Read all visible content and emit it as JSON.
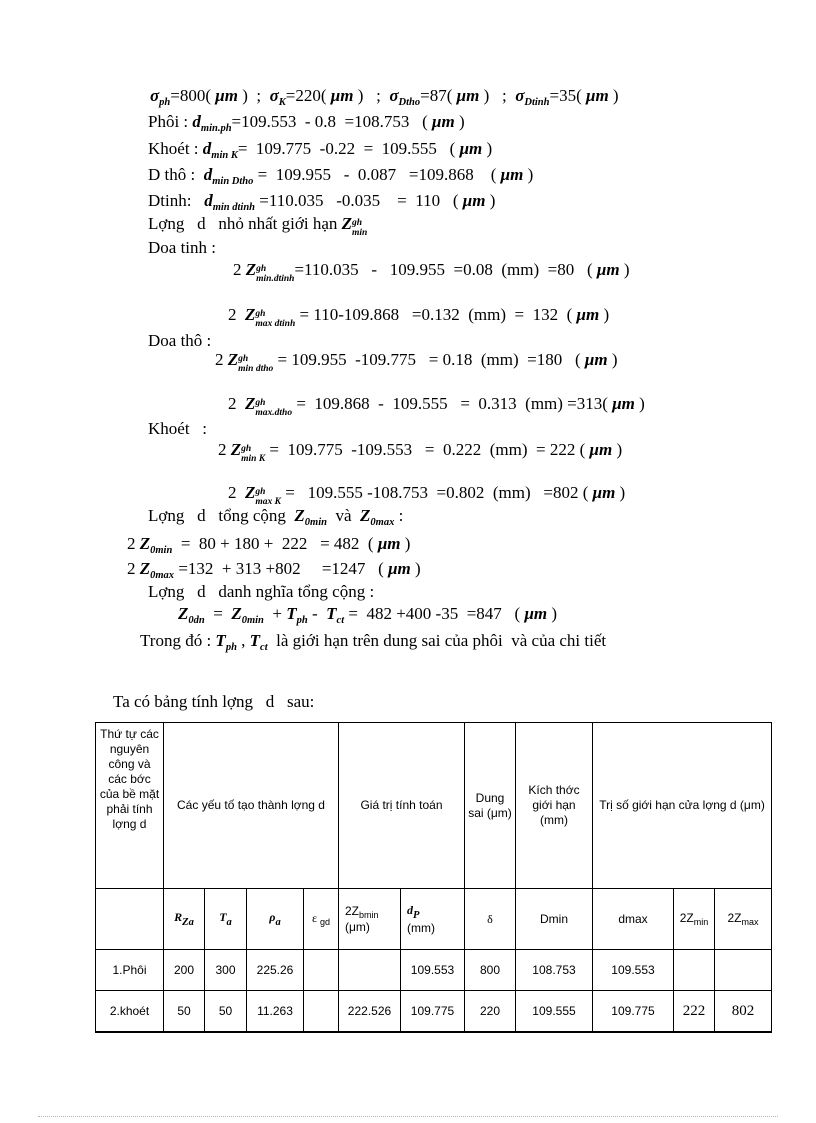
{
  "colors": {
    "ink": "#000000",
    "paper": "#ffffff"
  },
  "table_intro": "Ta có bảng tính lợng   d   sau:",
  "lines": [
    {
      "segs": [
        {
          "t": "σ",
          "c": "v"
        },
        {
          "t": "ph",
          "c": "s"
        },
        {
          "t": "=800( ",
          "c": "n"
        },
        {
          "t": "μm",
          "c": "u"
        },
        {
          "t": " )  ;  ",
          "c": "n"
        },
        {
          "t": "σ",
          "c": "v"
        },
        {
          "t": "K",
          "c": "s"
        },
        {
          "t": "=220( ",
          "c": "n"
        },
        {
          "t": "μm",
          "c": "u"
        },
        {
          "t": " )   ;  ",
          "c": "n"
        },
        {
          "t": "σ",
          "c": "v"
        },
        {
          "t": "Dtho",
          "c": "s"
        },
        {
          "t": "=87( ",
          "c": "n"
        },
        {
          "t": "μm",
          "c": "u"
        },
        {
          "t": " )   ;  ",
          "c": "n"
        },
        {
          "t": "σ",
          "c": "v"
        },
        {
          "t": "Dtinh",
          "c": "s"
        },
        {
          "t": "=35( ",
          "c": "n"
        },
        {
          "t": "μm",
          "c": "u"
        },
        {
          "t": " )",
          "c": "n"
        }
      ]
    },
    {
      "segs": [
        {
          "t": "Phôi : ",
          "c": "n"
        },
        {
          "t": "d",
          "c": "v"
        },
        {
          "t": "min.ph",
          "c": "s"
        },
        {
          "t": "=109.553  - 0.8  =108.753   ( ",
          "c": "n"
        },
        {
          "t": "μm",
          "c": "u"
        },
        {
          "t": " )",
          "c": "n"
        }
      ]
    },
    {
      "segs": [
        {
          "t": "Khoét : ",
          "c": "n"
        },
        {
          "t": "d",
          "c": "v"
        },
        {
          "t": "min K",
          "c": "s"
        },
        {
          "t": "=  109.775  -0.22  =  109.555   ( ",
          "c": "n"
        },
        {
          "t": "μm",
          "c": "u"
        },
        {
          "t": " )",
          "c": "n"
        }
      ]
    },
    {
      "segs": [
        {
          "t": "D thô :  ",
          "c": "n"
        },
        {
          "t": "d",
          "c": "v"
        },
        {
          "t": "min Dtho",
          "c": "s"
        },
        {
          "t": " =  109.955   -  0.087   =109.868    ( ",
          "c": "n"
        },
        {
          "t": "μm",
          "c": "u"
        },
        {
          "t": " )",
          "c": "n"
        }
      ]
    },
    {
      "segs": [
        {
          "t": "Dtinh:   ",
          "c": "n"
        },
        {
          "t": "d",
          "c": "v"
        },
        {
          "t": "min dtinh",
          "c": "s"
        },
        {
          "t": " =110.035   -0.035    =  110   ( ",
          "c": "n"
        },
        {
          "t": "μm",
          "c": "u"
        },
        {
          "t": " )",
          "c": "n"
        }
      ]
    },
    {
      "segs": [
        {
          "t": "Lợng   d   nhỏ nhất giới hạn ",
          "c": "n"
        },
        {
          "t": "Z",
          "c": "v",
          "sup": "gh",
          "sub": "min"
        }
      ]
    },
    {
      "segs": [
        {
          "t": "Doa tinh :",
          "c": "n"
        }
      ]
    },
    {
      "segs": [
        {
          "t": "2 ",
          "c": "n"
        },
        {
          "t": "Z",
          "c": "v",
          "sup": "gh",
          "sub": "min.dtinh"
        },
        {
          "t": "=110.035   -   109.955  =0.08  (mm)  =80   ( ",
          "c": "n"
        },
        {
          "t": "μm",
          "c": "u"
        },
        {
          "t": " )",
          "c": "n"
        }
      ]
    },
    {
      "segs": [
        {
          "t": "2  ",
          "c": "n"
        },
        {
          "t": "Z",
          "c": "v",
          "sup": "gh",
          "sub": "max dtinh"
        },
        {
          "t": " = 110-109.868   =0.132  (mm)  =  132  ( ",
          "c": "n"
        },
        {
          "t": "μm",
          "c": "u"
        },
        {
          "t": " )",
          "c": "n"
        }
      ]
    },
    {
      "segs": [
        {
          "t": "Doa thô :",
          "c": "n"
        }
      ]
    },
    {
      "segs": [
        {
          "t": "2 ",
          "c": "n"
        },
        {
          "t": "Z",
          "c": "v",
          "sup": "gh",
          "sub": "min dtho"
        },
        {
          "t": " = 109.955  -109.775   = 0.18  (mm)  =180   ( ",
          "c": "n"
        },
        {
          "t": "μm",
          "c": "u"
        },
        {
          "t": " )",
          "c": "n"
        }
      ]
    },
    {
      "segs": [
        {
          "t": "2  ",
          "c": "n"
        },
        {
          "t": "Z",
          "c": "v",
          "sup": "gh",
          "sub": "max.dtho"
        },
        {
          "t": " =  109.868  -  109.555   =  0.313  (mm) =313( ",
          "c": "n"
        },
        {
          "t": "μm",
          "c": "u"
        },
        {
          "t": " )",
          "c": "n"
        }
      ]
    },
    {
      "segs": [
        {
          "t": "Khoét   :",
          "c": "n"
        }
      ]
    },
    {
      "segs": [
        {
          "t": "2 ",
          "c": "n"
        },
        {
          "t": "Z",
          "c": "v",
          "sup": "gh",
          "sub": "min K"
        },
        {
          "t": " =  109.775  -109.553   =  0.222  (mm)  = 222 ( ",
          "c": "n"
        },
        {
          "t": "μm",
          "c": "u"
        },
        {
          "t": " )",
          "c": "n"
        }
      ]
    },
    {
      "segs": [
        {
          "t": "2  ",
          "c": "n"
        },
        {
          "t": "Z",
          "c": "v",
          "sup": "gh",
          "sub": "max K"
        },
        {
          "t": " =   109.555 -108.753  =0.802  (mm)   =802 ( ",
          "c": "n"
        },
        {
          "t": "μm",
          "c": "u"
        },
        {
          "t": " )",
          "c": "n"
        }
      ]
    },
    {
      "segs": [
        {
          "t": "Lợng   d   tổng cộng  ",
          "c": "n"
        },
        {
          "t": "Z",
          "c": "v"
        },
        {
          "t": "0min",
          "c": "s"
        },
        {
          "t": "  và  ",
          "c": "n"
        },
        {
          "t": "Z",
          "c": "v"
        },
        {
          "t": "0max",
          "c": "s"
        },
        {
          "t": " :",
          "c": "n"
        }
      ]
    },
    {
      "segs": [
        {
          "t": "2 ",
          "c": "n"
        },
        {
          "t": "Z",
          "c": "v"
        },
        {
          "t": "0min",
          "c": "s"
        },
        {
          "t": "  =  80 + 180 +  222   = 482  ( ",
          "c": "n"
        },
        {
          "t": "μm",
          "c": "u"
        },
        {
          "t": " )",
          "c": "n"
        }
      ]
    },
    {
      "segs": [
        {
          "t": "2 ",
          "c": "n"
        },
        {
          "t": "Z",
          "c": "v"
        },
        {
          "t": "0max",
          "c": "s"
        },
        {
          "t": " =132  + 313 +802     =1247   ( ",
          "c": "n"
        },
        {
          "t": "μm",
          "c": "u"
        },
        {
          "t": " )",
          "c": "n"
        }
      ]
    },
    {
      "segs": [
        {
          "t": "Lợng   d   danh nghĩa tổng cộng :",
          "c": "n"
        }
      ]
    },
    {
      "segs": [
        {
          "t": "Z",
          "c": "v"
        },
        {
          "t": "0dn",
          "c": "s"
        },
        {
          "t": "  =  ",
          "c": "n"
        },
        {
          "t": "Z",
          "c": "v"
        },
        {
          "t": "0min",
          "c": "s"
        },
        {
          "t": "  + ",
          "c": "n"
        },
        {
          "t": "T",
          "c": "v"
        },
        {
          "t": "ph",
          "c": "s"
        },
        {
          "t": " -  ",
          "c": "n"
        },
        {
          "t": "T",
          "c": "v"
        },
        {
          "t": "ct",
          "c": "s"
        },
        {
          "t": " =  482 +400 -35  =847   ( ",
          "c": "n"
        },
        {
          "t": "μm",
          "c": "u"
        },
        {
          "t": " )",
          "c": "n"
        }
      ]
    },
    {
      "segs": [
        {
          "t": "Trong đó : ",
          "c": "n"
        },
        {
          "t": "T",
          "c": "v"
        },
        {
          "t": "ph",
          "c": "s"
        },
        {
          "t": " , ",
          "c": "n"
        },
        {
          "t": "T",
          "c": "v"
        },
        {
          "t": "ct",
          "c": "s"
        },
        {
          "t": "  là giới hạn trên dung sai của phôi  và của chi tiết",
          "c": "n"
        }
      ]
    }
  ],
  "table": {
    "header1": {
      "stt": "Thứ tự các nguyên công và các bớc của bề mặt phải tính lợng d",
      "yeu_to": "Các  yếu tố tạo thành lợng d",
      "gia_tri": "Giá trị tính toán",
      "dung_sai": "Dung sai (μm)",
      "kich_thuoc": "Kích thớc  giới hạn (mm)",
      "tri_so": "Trị số giới hạn cửa lợng   d (μm)"
    },
    "header2": {
      "rza": [
        {
          "t": "R",
          "c": "v"
        },
        {
          "t": "Za",
          "c": "s"
        }
      ],
      "ta": [
        {
          "t": "T",
          "c": "v"
        },
        {
          "t": "a",
          "c": "s"
        }
      ],
      "rho": [
        {
          "t": "ρ",
          "c": "v"
        },
        {
          "t": "a",
          "c": "s"
        }
      ],
      "eps": [
        {
          "t": "ε ",
          "c": "g"
        },
        {
          "t": "gd",
          "c": "t"
        }
      ],
      "zbmin": [
        {
          "t": "2Z",
          "c": "n"
        },
        {
          "t": "bmin",
          "c": "t"
        },
        {
          "br": true
        },
        {
          "t": "(μm)",
          "c": "n"
        }
      ],
      "dp": [
        {
          "t": "d",
          "c": "v"
        },
        {
          "t": "P",
          "c": "s"
        },
        {
          "br": true
        },
        {
          "t": "(mm)",
          "c": "n"
        }
      ],
      "delta": [
        {
          "t": "δ",
          "c": "g"
        }
      ],
      "dmin": "Dmin",
      "dmax": "dmax",
      "zmin": [
        {
          "t": "2Z",
          "c": "n"
        },
        {
          "t": "min",
          "c": "t"
        }
      ],
      "zmax": [
        {
          "t": "2Z",
          "c": "n"
        },
        {
          "t": "max",
          "c": "t"
        }
      ]
    },
    "rows": [
      [
        "1.Phôi",
        "200",
        "300",
        "225.26",
        "",
        "",
        "109.553",
        "800",
        "108.753",
        "109.553",
        "",
        ""
      ],
      [
        "2.khoét",
        "50",
        "50",
        "11.263",
        "",
        "222.526",
        "109.775",
        "220",
        "109.555",
        "109.775",
        "222",
        "802"
      ]
    ]
  }
}
